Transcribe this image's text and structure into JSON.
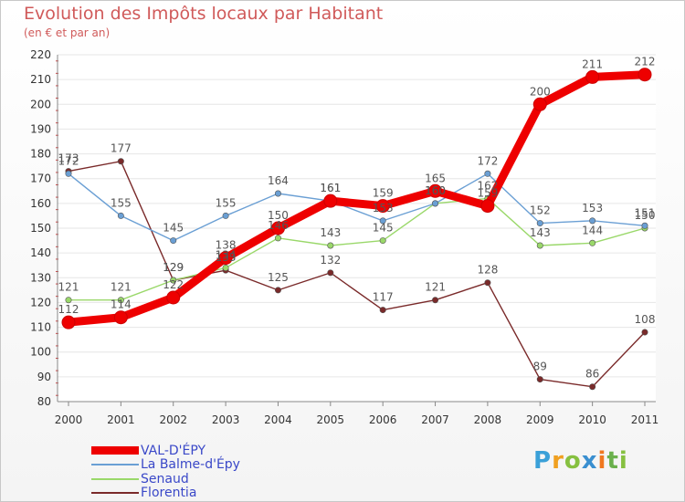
{
  "title": "Evolution des Impôts locaux par Habitant",
  "subtitle": "(en € et par an)",
  "logo": {
    "text": "Proxiti",
    "letters": [
      "P",
      "r",
      "o",
      "x",
      "i",
      "t",
      "i"
    ]
  },
  "chart_data": {
    "type": "line",
    "title": "Evolution des Impôts locaux par Habitant",
    "subtitle": "(en € et par an)",
    "xlabel": "",
    "ylabel": "",
    "categories": [
      "2000",
      "2001",
      "2002",
      "2003",
      "2004",
      "2005",
      "2006",
      "2007",
      "2008",
      "2009",
      "2010",
      "2011"
    ],
    "ylim": [
      80,
      220
    ],
    "yticks": [
      80,
      90,
      100,
      110,
      120,
      130,
      140,
      150,
      160,
      170,
      180,
      190,
      200,
      210,
      220
    ],
    "grid": true,
    "legend_position": "bottom-left",
    "series": [
      {
        "name": "VAL-D'ÉPY",
        "color": "#ee0000",
        "values": [
          112,
          114,
          122,
          138,
          150,
          161,
          159,
          165,
          159,
          200,
          211,
          212
        ]
      },
      {
        "name": "La Balme-d'Épy",
        "color": "#6a9fd4",
        "values": [
          172,
          155,
          145,
          155,
          164,
          161,
          153,
          160,
          172,
          152,
          153,
          151
        ]
      },
      {
        "name": "Senaud",
        "color": "#9ad86a",
        "values": [
          121,
          121,
          129,
          134,
          146,
          143,
          145,
          160,
          162,
          143,
          144,
          150
        ]
      },
      {
        "name": "Florentia",
        "color": "#7a2a2a",
        "values": [
          173,
          177,
          129,
          133,
          125,
          132,
          117,
          121,
          128,
          89,
          86,
          108
        ]
      }
    ]
  }
}
